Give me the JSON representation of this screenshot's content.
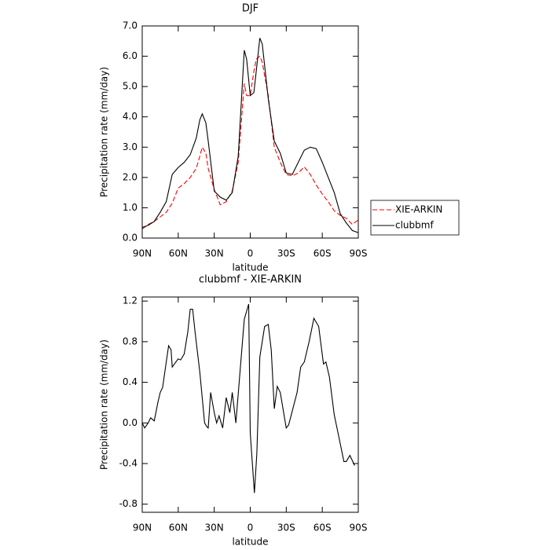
{
  "chart_data": [
    {
      "type": "line",
      "title": "DJF",
      "xlabel": "latitude",
      "ylabel": "Precipitation rate (mm/day)",
      "xlim": [
        90,
        -90
      ],
      "xticks": [
        {
          "value": 90,
          "label": "90N"
        },
        {
          "value": 60,
          "label": "60N"
        },
        {
          "value": 30,
          "label": "30N"
        },
        0,
        {
          "value": -30,
          "label": "30S"
        },
        {
          "value": -60,
          "label": "60S"
        },
        {
          "value": -90,
          "label": "90S"
        }
      ],
      "ylim": [
        0,
        7
      ],
      "yticks": [
        {
          "value": 0,
          "label": "0.0"
        },
        {
          "value": 1,
          "label": "1.0"
        },
        {
          "value": 2,
          "label": "2.0"
        },
        {
          "value": 3,
          "label": "3.0"
        },
        {
          "value": 4,
          "label": "4.0"
        },
        {
          "value": 5,
          "label": "5.0"
        },
        {
          "value": 6,
          "label": "6.0"
        },
        {
          "value": 7,
          "label": "7.0"
        }
      ],
      "legend": "right",
      "x": [
        90,
        85,
        80,
        75,
        70,
        65,
        60,
        55,
        50,
        45,
        42,
        40,
        37,
        35,
        30,
        25,
        20,
        15,
        10,
        5,
        3,
        0,
        -3,
        -5,
        -8,
        -10,
        -15,
        -20,
        -25,
        -30,
        -35,
        -40,
        -45,
        -50,
        -55,
        -60,
        -65,
        -70,
        -75,
        -80,
        -85,
        -90
      ],
      "series": [
        {
          "name": "XIE-ARKIN",
          "color": "#ff0000",
          "line_style": "dashed",
          "values": [
            0.3,
            0.45,
            0.55,
            0.7,
            0.85,
            1.15,
            1.65,
            1.8,
            2.0,
            2.3,
            2.7,
            3.0,
            2.8,
            2.3,
            1.6,
            1.1,
            1.2,
            1.55,
            2.5,
            5.1,
            4.7,
            4.7,
            5.5,
            5.9,
            6.0,
            5.8,
            4.7,
            3.0,
            2.5,
            2.1,
            2.05,
            2.15,
            2.35,
            2.1,
            1.75,
            1.45,
            1.2,
            0.9,
            0.75,
            0.65,
            0.45,
            0.6
          ]
        },
        {
          "name": "clubbmf",
          "color": "#000000",
          "line_style": "solid",
          "values": [
            0.35,
            0.42,
            0.55,
            0.85,
            1.2,
            2.1,
            2.33,
            2.5,
            2.75,
            3.3,
            3.9,
            4.1,
            3.8,
            3.2,
            1.55,
            1.35,
            1.25,
            1.5,
            2.7,
            6.2,
            5.9,
            4.7,
            4.8,
            5.5,
            6.6,
            6.4,
            4.6,
            3.2,
            2.8,
            2.15,
            2.1,
            2.5,
            2.9,
            3.0,
            2.95,
            2.5,
            2.0,
            1.5,
            0.8,
            0.5,
            0.25,
            0.18
          ]
        }
      ]
    },
    {
      "type": "line",
      "title": "clubbmf - XIE-ARKIN",
      "xlabel": "latitude",
      "ylabel": "Precipitation rate (mm/day)",
      "xlim": [
        90,
        -90
      ],
      "xticks": [
        {
          "value": 90,
          "label": "90N"
        },
        {
          "value": 60,
          "label": "60N"
        },
        {
          "value": 30,
          "label": "30N"
        },
        0,
        {
          "value": -30,
          "label": "30S"
        },
        {
          "value": -60,
          "label": "60S"
        },
        {
          "value": -90,
          "label": "90S"
        }
      ],
      "ylim": [
        -0.88,
        1.24
      ],
      "yticks": [
        -0.8,
        -0.4,
        {
          "value": 0,
          "label": "0.0"
        },
        0.4,
        0.8,
        1.2
      ],
      "x": [
        90,
        88,
        85,
        83,
        80,
        77,
        75,
        73,
        70,
        68,
        66,
        65,
        62,
        60,
        58,
        55,
        52,
        50,
        48,
        46,
        42,
        38,
        36,
        35,
        33,
        30,
        28,
        26,
        23,
        20,
        17,
        15,
        12,
        5,
        1.3,
        0,
        -3.5,
        -5.5,
        -8,
        -12,
        -15,
        -17.5,
        -20,
        -22.5,
        -25,
        -30,
        -32,
        -39,
        -42,
        -45,
        -49,
        -53,
        -57,
        -61,
        -63,
        -66,
        -70,
        -74,
        -78,
        -80,
        -83,
        -87
      ],
      "series": [
        {
          "color": "#000000",
          "line_style": "solid",
          "values": [
            0.0,
            -0.05,
            0.0,
            0.05,
            0.02,
            0.2,
            0.3,
            0.35,
            0.6,
            0.76,
            0.72,
            0.55,
            0.6,
            0.63,
            0.62,
            0.68,
            0.9,
            1.12,
            1.12,
            0.9,
            0.5,
            0.0,
            -0.04,
            -0.05,
            0.3,
            0.1,
            0.0,
            0.07,
            -0.05,
            0.25,
            0.1,
            0.3,
            0.0,
            1.02,
            1.17,
            -0.1,
            -0.69,
            -0.3,
            0.65,
            0.95,
            0.97,
            0.72,
            0.14,
            0.36,
            0.3,
            -0.05,
            -0.02,
            0.3,
            0.55,
            0.6,
            0.8,
            1.03,
            0.95,
            0.58,
            0.6,
            0.45,
            0.08,
            -0.15,
            -0.38,
            -0.38,
            -0.32,
            -0.42
          ]
        }
      ]
    }
  ]
}
